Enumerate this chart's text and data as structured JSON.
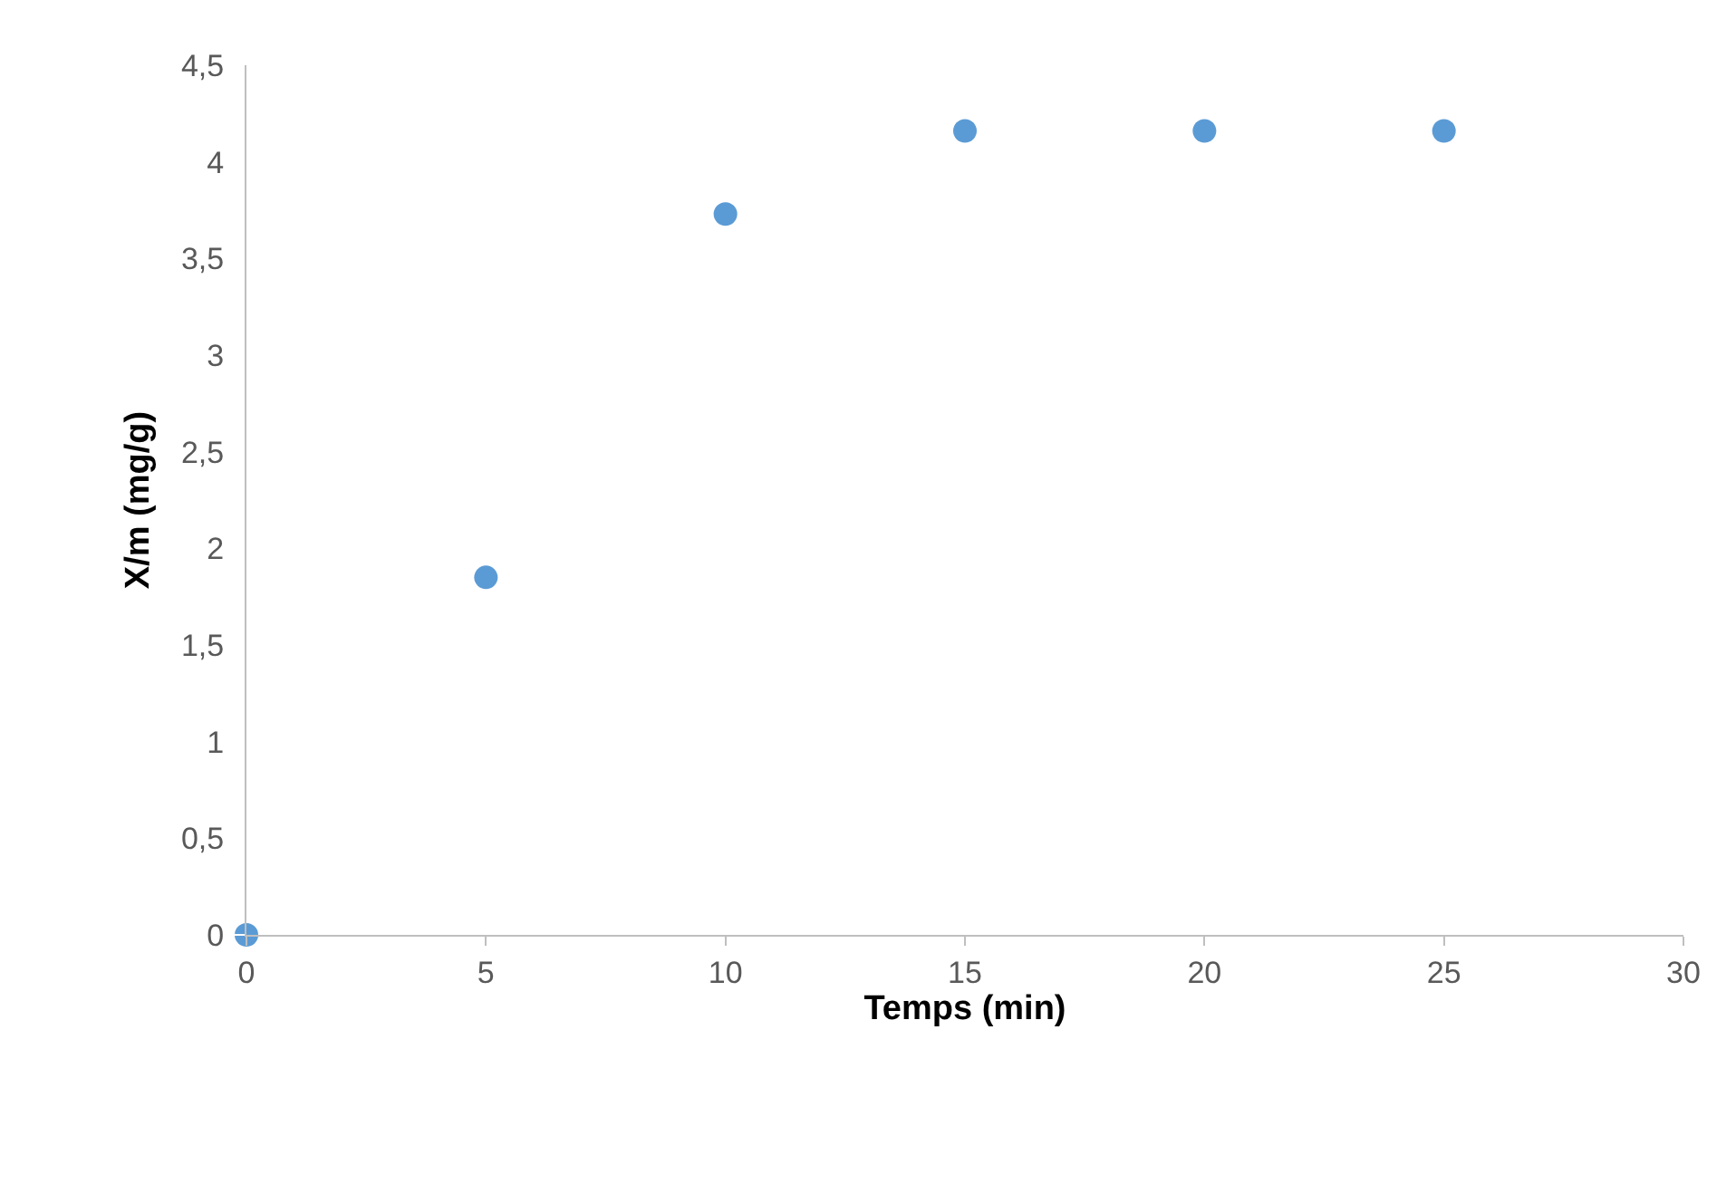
{
  "chart_data": {
    "type": "scatter",
    "xlabel": "Temps (min)",
    "ylabel": "X/m (mg/g)",
    "x": [
      0,
      5,
      10,
      15,
      20,
      25
    ],
    "series": [
      {
        "color": "#5b9bd5",
        "values": [
          0,
          1.85,
          3.73,
          4.16,
          4.16,
          4.16
        ]
      }
    ],
    "xlim": [
      0,
      30
    ],
    "xticks": [
      0,
      5,
      10,
      15,
      20,
      25,
      30
    ],
    "ylim": [
      0,
      4.5
    ],
    "yticks": [
      0,
      {
        "value": 0.5,
        "label": "0,5"
      },
      1,
      {
        "value": 1.5,
        "label": "1,5"
      },
      2,
      {
        "value": 2.5,
        "label": "2,5"
      },
      3,
      {
        "value": 3.5,
        "label": "3,5"
      },
      4,
      {
        "value": 4.5,
        "label": "4,5"
      }
    ],
    "marker": "circle",
    "grid": false,
    "legend": false
  }
}
